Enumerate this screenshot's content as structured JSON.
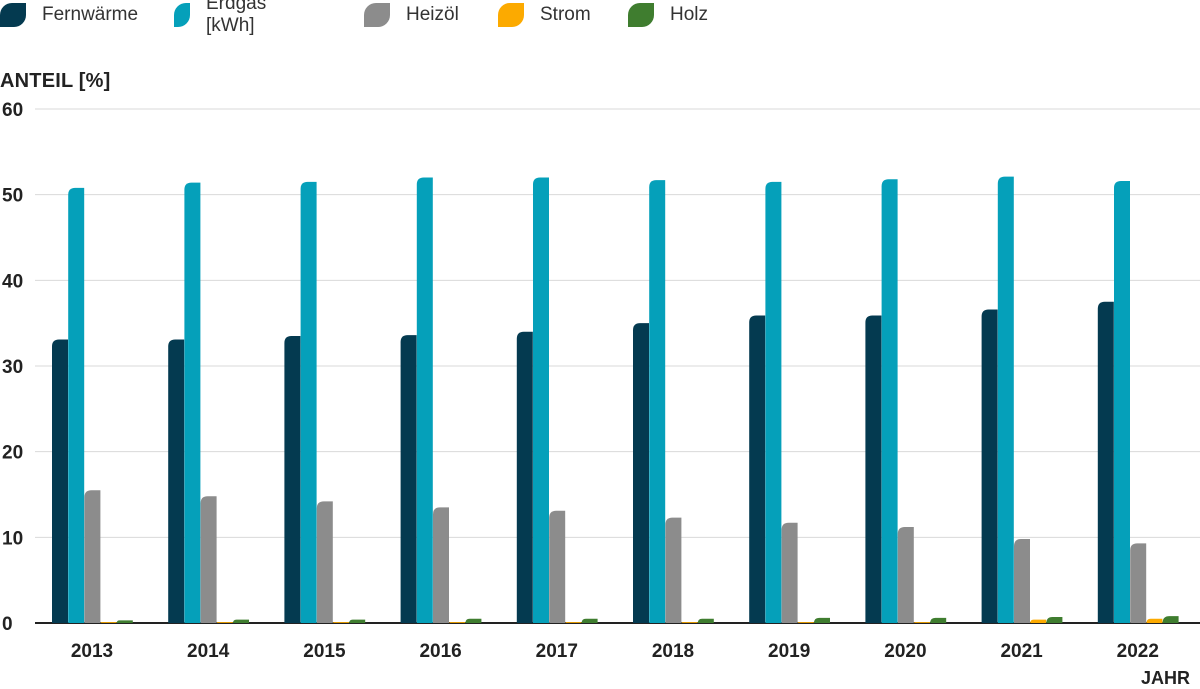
{
  "chart_data": {
    "type": "bar",
    "categories": [
      "2013",
      "2014",
      "2015",
      "2016",
      "2017",
      "2018",
      "2019",
      "2020",
      "2021",
      "2022"
    ],
    "series": [
      {
        "name": "Fernwärme",
        "color": "#043a50",
        "values": [
          33.1,
          33.1,
          33.5,
          33.6,
          34.0,
          35.0,
          35.9,
          35.9,
          36.6,
          37.5
        ]
      },
      {
        "name": "Erdgas [kWh]",
        "color": "#05a0ba",
        "values": [
          50.8,
          51.4,
          51.5,
          52.0,
          52.0,
          51.7,
          51.5,
          51.8,
          52.1,
          51.6
        ]
      },
      {
        "name": "Heizöl",
        "color": "#8c8c8c",
        "values": [
          15.5,
          14.8,
          14.2,
          13.5,
          13.1,
          12.3,
          11.7,
          11.2,
          9.8,
          9.3
        ]
      },
      {
        "name": "Strom",
        "color": "#fcaa00",
        "values": [
          0.1,
          0.1,
          0.1,
          0.1,
          0.1,
          0.1,
          0.1,
          0.1,
          0.4,
          0.5
        ]
      },
      {
        "name": "Holz",
        "color": "#3f7d2f",
        "values": [
          0.3,
          0.4,
          0.4,
          0.5,
          0.5,
          0.5,
          0.6,
          0.6,
          0.7,
          0.8
        ]
      }
    ],
    "ylabel": "ANTEIL [%]",
    "xlabel": "JAHR",
    "ylim": [
      0,
      60
    ],
    "yticks": [
      "0",
      "10",
      "20",
      "30",
      "40",
      "50",
      "60"
    ],
    "grid": true,
    "legend_position": "top-left"
  }
}
